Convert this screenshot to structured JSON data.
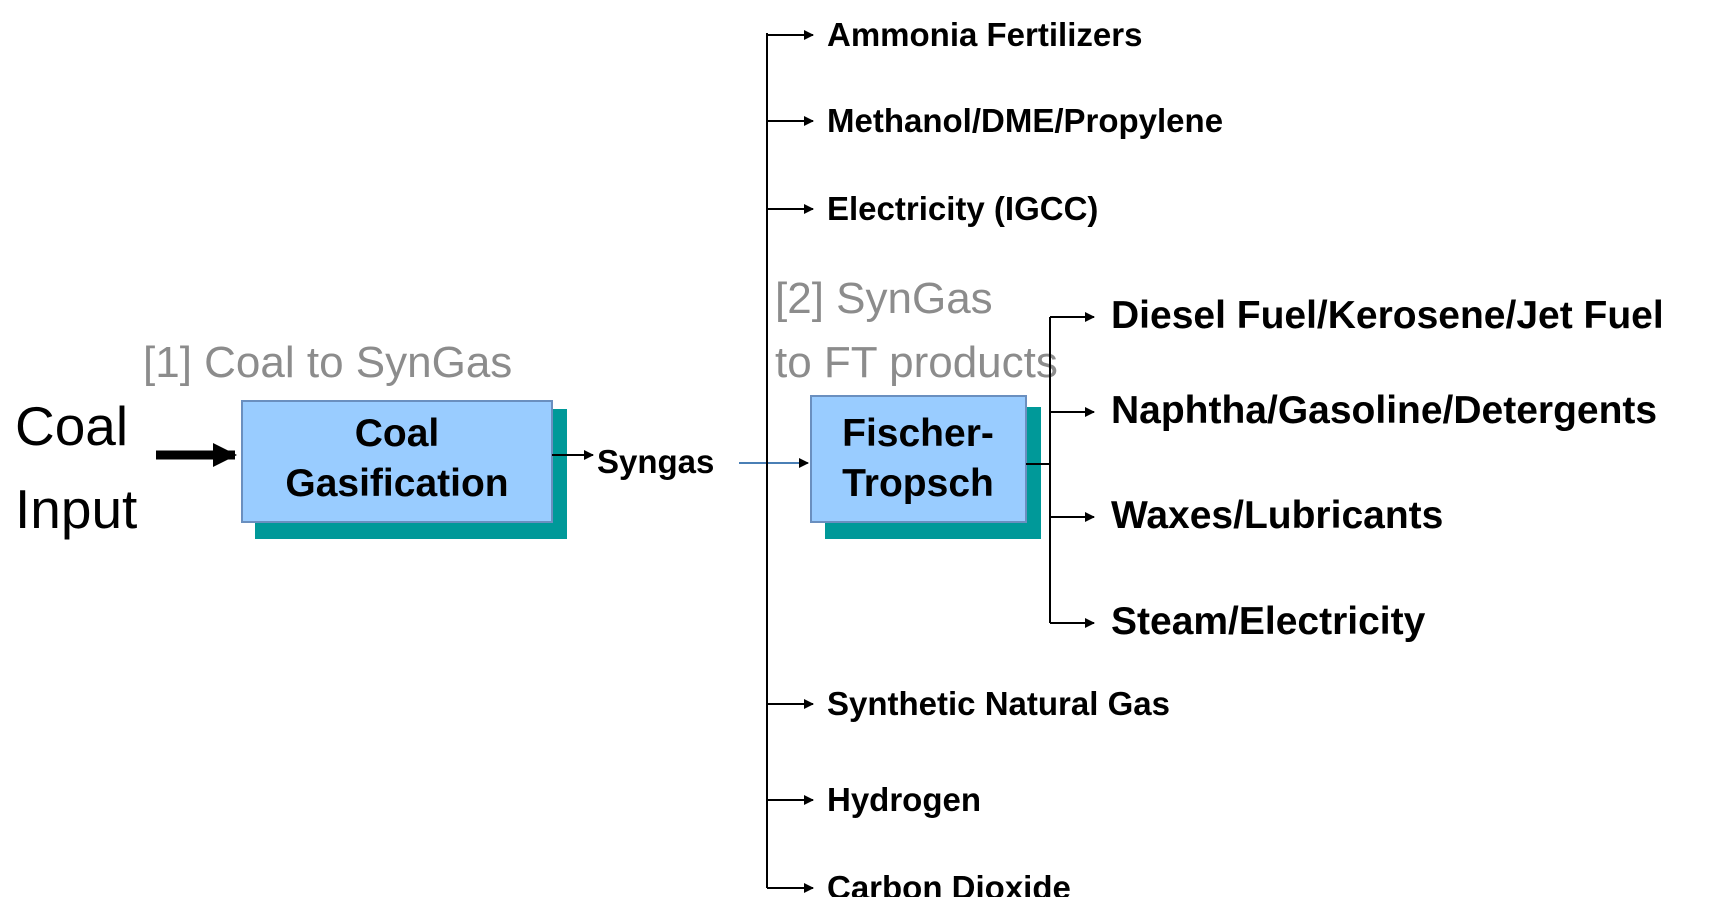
{
  "input": {
    "line1": "Coal",
    "line2": "Input"
  },
  "stage1": {
    "label": "[1] Coal to SynGas",
    "box": {
      "line1": "Coal",
      "line2": "Gasification"
    }
  },
  "intermediate": "Syngas",
  "syngas_products": [
    "Ammonia Fertilizers",
    "Methanol/DME/Propylene",
    "Electricity (IGCC)",
    "Synthetic Natural Gas",
    "Hydrogen",
    "Carbon Dioxide"
  ],
  "stage2": {
    "label": {
      "line1": "[2] SynGas",
      "line2": "to FT products"
    },
    "box": {
      "line1": "Fischer-",
      "line2": "Tropsch"
    }
  },
  "ft_products": [
    "Diesel Fuel/Kerosene/Jet Fuel",
    "Naphtha/Gasoline/Detergents",
    "Waxes/Lubricants",
    "Steam/Electricity"
  ]
}
